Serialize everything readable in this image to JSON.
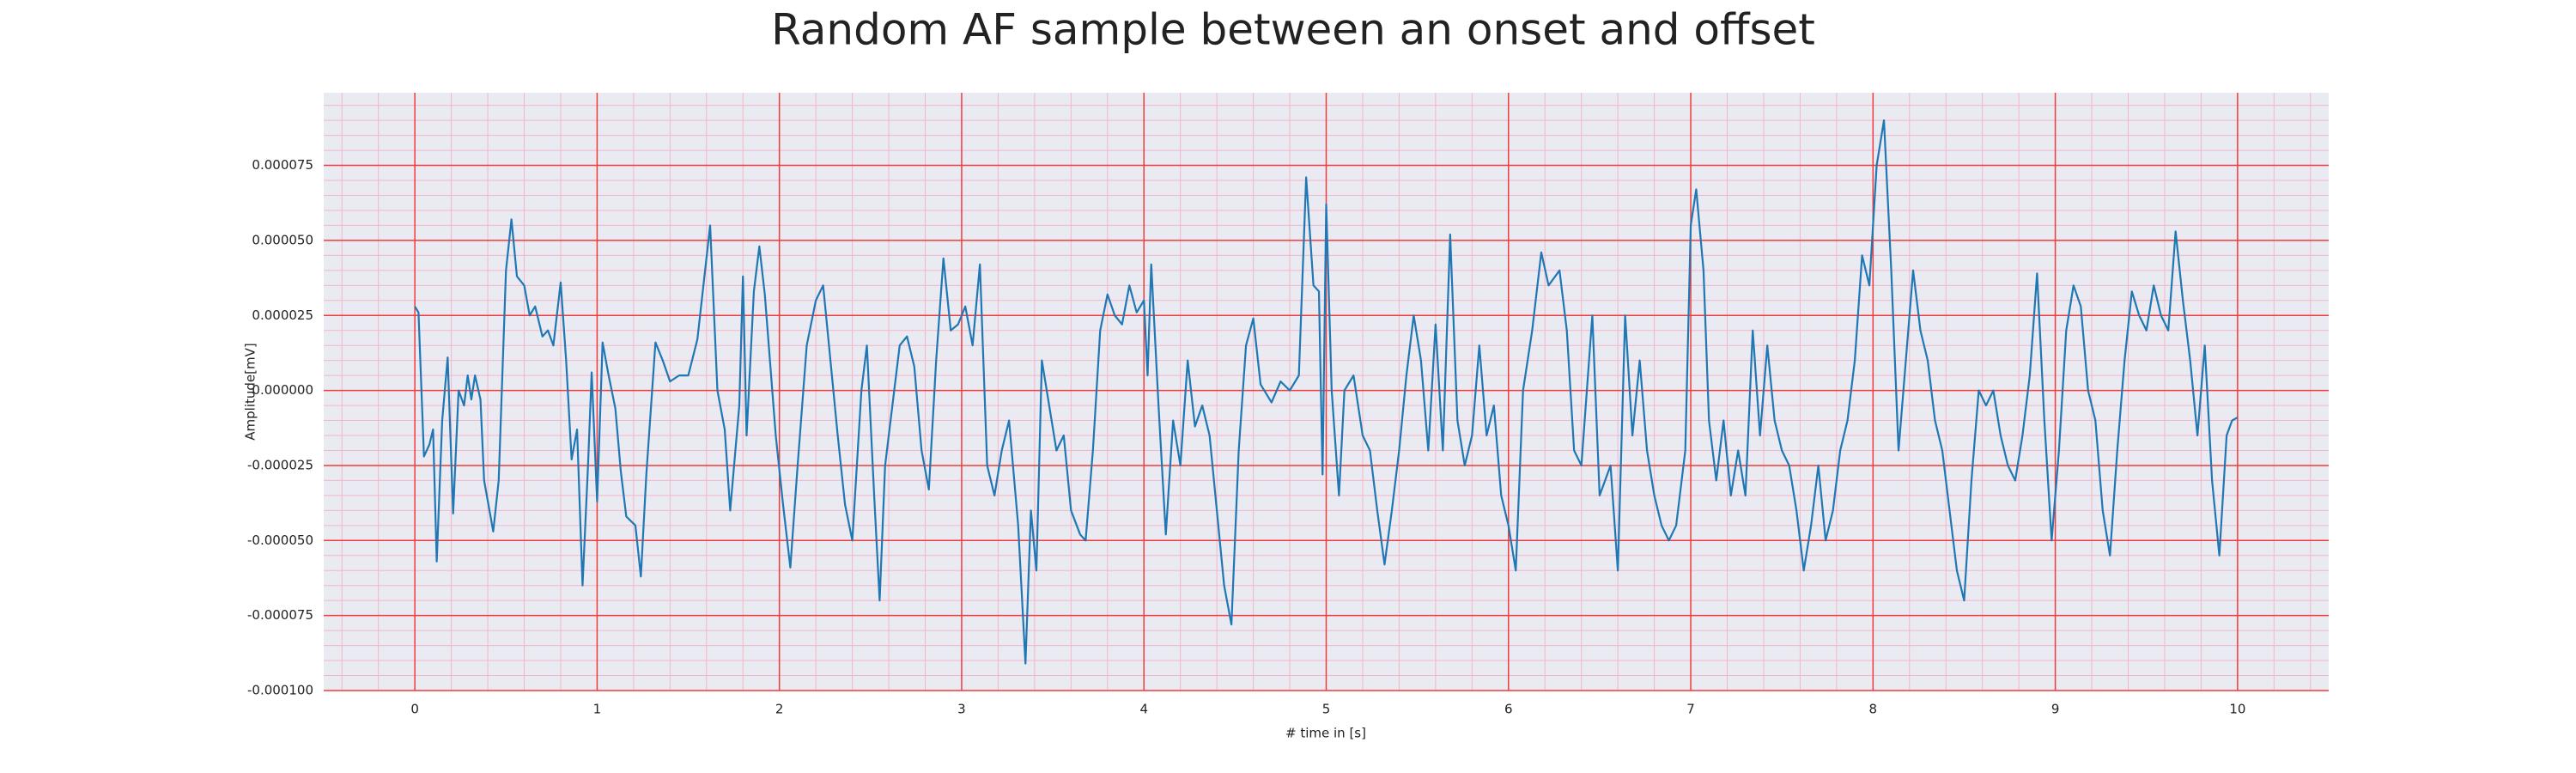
{
  "chart_data": {
    "type": "line",
    "title": "Random AF sample between an onset and offset",
    "xlabel": "# time in [s]",
    "ylabel": "Amplitude[mV]",
    "xlim": [
      -0.5,
      10.5
    ],
    "xticks": [
      0,
      1,
      2,
      3,
      4,
      5,
      6,
      7,
      8,
      9,
      10
    ],
    "ylim": [
      -0.0001,
      9.92e-05
    ],
    "yticks": [
      {
        "value": -0.0001,
        "label": "-0.000100"
      },
      {
        "value": -7.5e-05,
        "label": "-0.000075"
      },
      {
        "value": -5e-05,
        "label": "-0.000050"
      },
      {
        "value": -2.5e-05,
        "label": "-0.000025"
      },
      {
        "value": 0,
        "label": "0.000000"
      },
      {
        "value": 2.5e-05,
        "label": "0.000025"
      },
      {
        "value": 5e-05,
        "label": "0.000050"
      },
      {
        "value": 7.5e-05,
        "label": "0.000075"
      }
    ],
    "grid": true,
    "minor_grid": true,
    "series": [
      {
        "color": "#1f77b4",
        "x": [
          0.0,
          0.02,
          0.05,
          0.08,
          0.1,
          0.12,
          0.15,
          0.18,
          0.21,
          0.24,
          0.27,
          0.29,
          0.31,
          0.33,
          0.36,
          0.38,
          0.43,
          0.46,
          0.5,
          0.53,
          0.56,
          0.6,
          0.63,
          0.66,
          0.7,
          0.73,
          0.76,
          0.8,
          0.83,
          0.86,
          0.89,
          0.92,
          0.95,
          0.97,
          1.0,
          1.03,
          1.06,
          1.1,
          1.13,
          1.16,
          1.21,
          1.24,
          1.27,
          1.32,
          1.36,
          1.4,
          1.45,
          1.5,
          1.55,
          1.62,
          1.66,
          1.7,
          1.73,
          1.78,
          1.8,
          1.82,
          1.86,
          1.89,
          1.92,
          1.98,
          2.02,
          2.06,
          2.1,
          2.15,
          2.2,
          2.24,
          2.28,
          2.32,
          2.36,
          2.4,
          2.45,
          2.48,
          2.52,
          2.55,
          2.58,
          2.62,
          2.66,
          2.7,
          2.74,
          2.78,
          2.82,
          2.86,
          2.9,
          2.94,
          2.98,
          3.02,
          3.06,
          3.1,
          3.14,
          3.18,
          3.22,
          3.26,
          3.31,
          3.35,
          3.38,
          3.41,
          3.44,
          3.48,
          3.52,
          3.56,
          3.6,
          3.65,
          3.68,
          3.72,
          3.76,
          3.8,
          3.84,
          3.88,
          3.92,
          3.96,
          4.0,
          4.02,
          4.04,
          4.08,
          4.12,
          4.16,
          4.2,
          4.24,
          4.28,
          4.32,
          4.36,
          4.4,
          4.44,
          4.48,
          4.52,
          4.56,
          4.6,
          4.64,
          4.7,
          4.75,
          4.8,
          4.85,
          4.89,
          4.93,
          4.96,
          4.98,
          5.0,
          5.03,
          5.07,
          5.1,
          5.15,
          5.2,
          5.24,
          5.28,
          5.32,
          5.36,
          5.4,
          5.44,
          5.48,
          5.52,
          5.56,
          5.6,
          5.64,
          5.68,
          5.72,
          5.76,
          5.8,
          5.84,
          5.88,
          5.92,
          5.96,
          6.0,
          6.04,
          6.08,
          6.13,
          6.18,
          6.22,
          6.28,
          6.32,
          6.36,
          6.4,
          6.46,
          6.5,
          6.56,
          6.6,
          6.64,
          6.68,
          6.72,
          6.76,
          6.8,
          6.84,
          6.88,
          6.92,
          6.97,
          7.0,
          7.03,
          7.07,
          7.1,
          7.14,
          7.18,
          7.22,
          7.26,
          7.3,
          7.34,
          7.38,
          7.42,
          7.46,
          7.5,
          7.54,
          7.58,
          7.62,
          7.66,
          7.7,
          7.74,
          7.78,
          7.82,
          7.86,
          7.9,
          7.94,
          7.98,
          8.02,
          8.06,
          8.1,
          8.14,
          8.18,
          8.22,
          8.26,
          8.3,
          8.34,
          8.38,
          8.42,
          8.46,
          8.5,
          8.54,
          8.58,
          8.62,
          8.66,
          8.7,
          8.74,
          8.78,
          8.82,
          8.86,
          8.9,
          8.94,
          8.98,
          9.02,
          9.06,
          9.1,
          9.14,
          9.18,
          9.22,
          9.26,
          9.3,
          9.34,
          9.38,
          9.42,
          9.46,
          9.5,
          9.54,
          9.58,
          9.62,
          9.66,
          9.7,
          9.74,
          9.78,
          9.82,
          9.86,
          9.9,
          9.94,
          9.97,
          10.0
        ],
        "values": [
          2.8e-05,
          2.6e-05,
          -2.2e-05,
          -1.8e-05,
          -1.3e-05,
          -5.7e-05,
          -1e-05,
          1.1e-05,
          -4.1e-05,
          0,
          -5e-06,
          5e-06,
          -3e-06,
          5e-06,
          -3e-06,
          -3e-05,
          -4.7e-05,
          -3e-05,
          4e-05,
          5.7e-05,
          3.8e-05,
          3.5e-05,
          2.5e-05,
          2.8e-05,
          1.8e-05,
          2e-05,
          1.5e-05,
          3.6e-05,
          1e-05,
          -2.3e-05,
          -1.3e-05,
          -6.5e-05,
          -2.5e-05,
          6e-06,
          -3.7e-05,
          1.6e-05,
          6e-06,
          -6e-06,
          -2.7e-05,
          -4.2e-05,
          -4.5e-05,
          -6.2e-05,
          -2.8e-05,
          1.6e-05,
          1e-05,
          3e-06,
          5e-06,
          5e-06,
          1.7e-05,
          5.5e-05,
          0,
          -1.3e-05,
          -4e-05,
          -5e-06,
          3.8e-05,
          -1.5e-05,
          3.3e-05,
          4.8e-05,
          3.2e-05,
          -1.5e-05,
          -3.8e-05,
          -5.9e-05,
          -2.5e-05,
          1.5e-05,
          3e-05,
          3.5e-05,
          1e-05,
          -1.5e-05,
          -3.8e-05,
          -5e-05,
          0,
          1.5e-05,
          -3.5e-05,
          -7e-05,
          -2.5e-05,
          -5e-06,
          1.5e-05,
          1.8e-05,
          8e-06,
          -2e-05,
          -3.3e-05,
          1e-05,
          4.4e-05,
          2e-05,
          2.2e-05,
          2.8e-05,
          1.5e-05,
          4.2e-05,
          -2.5e-05,
          -3.5e-05,
          -2e-05,
          -1e-05,
          -4.5e-05,
          -9.1e-05,
          -4e-05,
          -6e-05,
          1e-05,
          -5e-06,
          -2e-05,
          -1.5e-05,
          -4e-05,
          -4.8e-05,
          -5e-05,
          -2e-05,
          2e-05,
          3.2e-05,
          2.5e-05,
          2.2e-05,
          3.5e-05,
          2.6e-05,
          3e-05,
          5e-06,
          4.2e-05,
          -5e-06,
          -4.8e-05,
          -1e-05,
          -2.5e-05,
          1e-05,
          -1.2e-05,
          -5e-06,
          -1.5e-05,
          -4e-05,
          -6.5e-05,
          -7.8e-05,
          -2e-05,
          1.5e-05,
          2.4e-05,
          2e-06,
          -4e-06,
          3e-06,
          0,
          5e-06,
          7.1e-05,
          3.5e-05,
          3.3e-05,
          -2.8e-05,
          6.2e-05,
          0,
          -3.5e-05,
          0,
          5e-06,
          -1.5e-05,
          -2e-05,
          -4e-05,
          -5.8e-05,
          -4e-05,
          -2e-05,
          5e-06,
          2.5e-05,
          1e-05,
          -2e-05,
          2.2e-05,
          -2e-05,
          5.2e-05,
          -1e-05,
          -2.5e-05,
          -1.5e-05,
          1.5e-05,
          -1.5e-05,
          -5e-06,
          -3.5e-05,
          -4.5e-05,
          -6e-05,
          0,
          2e-05,
          4.6e-05,
          3.5e-05,
          4e-05,
          2e-05,
          -2e-05,
          -2.5e-05,
          2.5e-05,
          -3.5e-05,
          -2.5e-05,
          -6e-05,
          2.5e-05,
          -1.5e-05,
          1e-05,
          -2e-05,
          -3.5e-05,
          -4.5e-05,
          -5e-05,
          -4.5e-05,
          -2e-05,
          5.5e-05,
          6.7e-05,
          4e-05,
          -1e-05,
          -3e-05,
          -1e-05,
          -3.5e-05,
          -2e-05,
          -3.5e-05,
          2e-05,
          -1.5e-05,
          1.5e-05,
          -1e-05,
          -2e-05,
          -2.5e-05,
          -4e-05,
          -6e-05,
          -4.5e-05,
          -2.5e-05,
          -5e-05,
          -4e-05,
          -2e-05,
          -1e-05,
          1e-05,
          4.5e-05,
          3.5e-05,
          7.5e-05,
          9e-05,
          4e-05,
          -2e-05,
          1e-05,
          4e-05,
          2e-05,
          1e-05,
          -1e-05,
          -2e-05,
          -4e-05,
          -6e-05,
          -7e-05,
          -3e-05,
          0,
          -5e-06,
          0,
          -1.5e-05,
          -2.5e-05,
          -3e-05,
          -1.5e-05,
          5e-06,
          3.9e-05,
          -1e-05,
          -5e-05,
          -2e-05,
          2e-05,
          3.5e-05,
          2.8e-05,
          0,
          -1e-05,
          -4e-05,
          -5.5e-05,
          -2e-05,
          1e-05,
          3.3e-05,
          2.5e-05,
          2e-05,
          3.5e-05,
          2.5e-05,
          2e-05,
          5.3e-05,
          3e-05,
          1e-05,
          -1.5e-05,
          1.5e-05,
          -3e-05,
          -5.5e-05,
          -1.5e-05,
          -1e-05,
          -9e-06
        ]
      }
    ]
  }
}
